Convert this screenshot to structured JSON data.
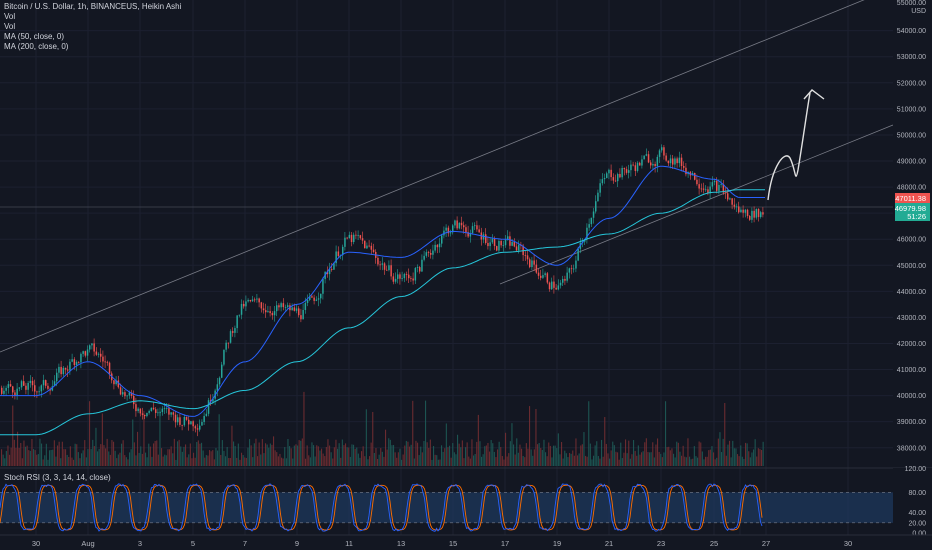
{
  "legend": {
    "title": "Bitcoin / U.S. Dollar, 1h, BINANCEUS, Heikin Ashi",
    "vol1": "Vol",
    "vol2": "Vol",
    "ma50": "MA (50, close, 0)",
    "ma200": "MA (200, close, 0)"
  },
  "price_axis": {
    "currency": "USD",
    "top_label": "55000.00",
    "current_price": "47011.38",
    "current_ma": "46979.98",
    "countdown": "51:26"
  },
  "stoch": {
    "title": "Stoch RSI (3, 3, 14, 14, close)",
    "top_label": "120.00",
    "levels": [
      "80.00",
      "40.00",
      "20.00",
      "0.00"
    ]
  },
  "colors": {
    "background": "#131722",
    "up": "#26a69a",
    "down": "#ef5350",
    "ma50": "#2962ff",
    "ma200": "#26c6da",
    "stoch_k": "#2962ff",
    "stoch_d": "#ff6d00",
    "band": "#1e3a5f",
    "channel": "#787b86"
  },
  "chart_data": {
    "type": "candlestick",
    "title": "Bitcoin / U.S. Dollar, 1h, BINANCEUS, Heikin Ashi",
    "ylabel": "USD",
    "ylim": [
      37300,
      55100
    ],
    "yticks": [
      38000,
      39000,
      40000,
      41000,
      42000,
      43000,
      44000,
      45000,
      46000,
      47000,
      48000,
      49000,
      50000,
      51000,
      52000,
      53000,
      54000
    ],
    "xticks": [
      "30",
      "Aug",
      "3",
      "5",
      "7",
      "9",
      "11",
      "13",
      "15",
      "17",
      "19",
      "21",
      "23",
      "25",
      "27",
      "30"
    ],
    "series": [
      {
        "name": "Bitcoin / U.S. Dollar",
        "anchors": [
          [
            "30",
            40300
          ],
          [
            "Aug",
            41700
          ],
          [
            "3",
            39500
          ],
          [
            "5",
            39000
          ],
          [
            "7",
            43500
          ],
          [
            "9",
            43200
          ],
          [
            "11",
            46000
          ],
          [
            "13",
            44500
          ],
          [
            "15",
            46500
          ],
          [
            "17",
            45800
          ],
          [
            "19",
            44200
          ],
          [
            "21",
            48500
          ],
          [
            "23",
            49200
          ],
          [
            "25",
            48000
          ],
          [
            "26",
            47011
          ]
        ]
      },
      {
        "name": "MA (50, close, 0)",
        "anchors": [
          [
            "30",
            40000
          ],
          [
            "Aug",
            41300
          ],
          [
            "3",
            40000
          ],
          [
            "5",
            39200
          ],
          [
            "7",
            41300
          ],
          [
            "9",
            43500
          ],
          [
            "11",
            45500
          ],
          [
            "13",
            45300
          ],
          [
            "15",
            46300
          ],
          [
            "17",
            46000
          ],
          [
            "19",
            45000
          ],
          [
            "21",
            46800
          ],
          [
            "23",
            48800
          ],
          [
            "25",
            48300
          ],
          [
            "26",
            47600
          ]
        ]
      },
      {
        "name": "MA (200, close, 0)",
        "anchors": [
          [
            "30",
            38500
          ],
          [
            "Aug",
            39300
          ],
          [
            "3",
            39800
          ],
          [
            "5",
            39500
          ],
          [
            "7",
            40200
          ],
          [
            "9",
            41300
          ],
          [
            "11",
            42600
          ],
          [
            "13",
            43800
          ],
          [
            "15",
            44900
          ],
          [
            "17",
            45500
          ],
          [
            "19",
            45700
          ],
          [
            "21",
            46200
          ],
          [
            "23",
            47000
          ],
          [
            "25",
            47800
          ],
          [
            "26",
            47900
          ]
        ]
      }
    ],
    "volume": "bars below price; tallest mid-period",
    "oscillator": {
      "name": "Stoch RSI (3, 3, 14, 14, close)",
      "ylim": [
        0,
        120
      ],
      "levels": [
        80,
        20
      ]
    }
  }
}
